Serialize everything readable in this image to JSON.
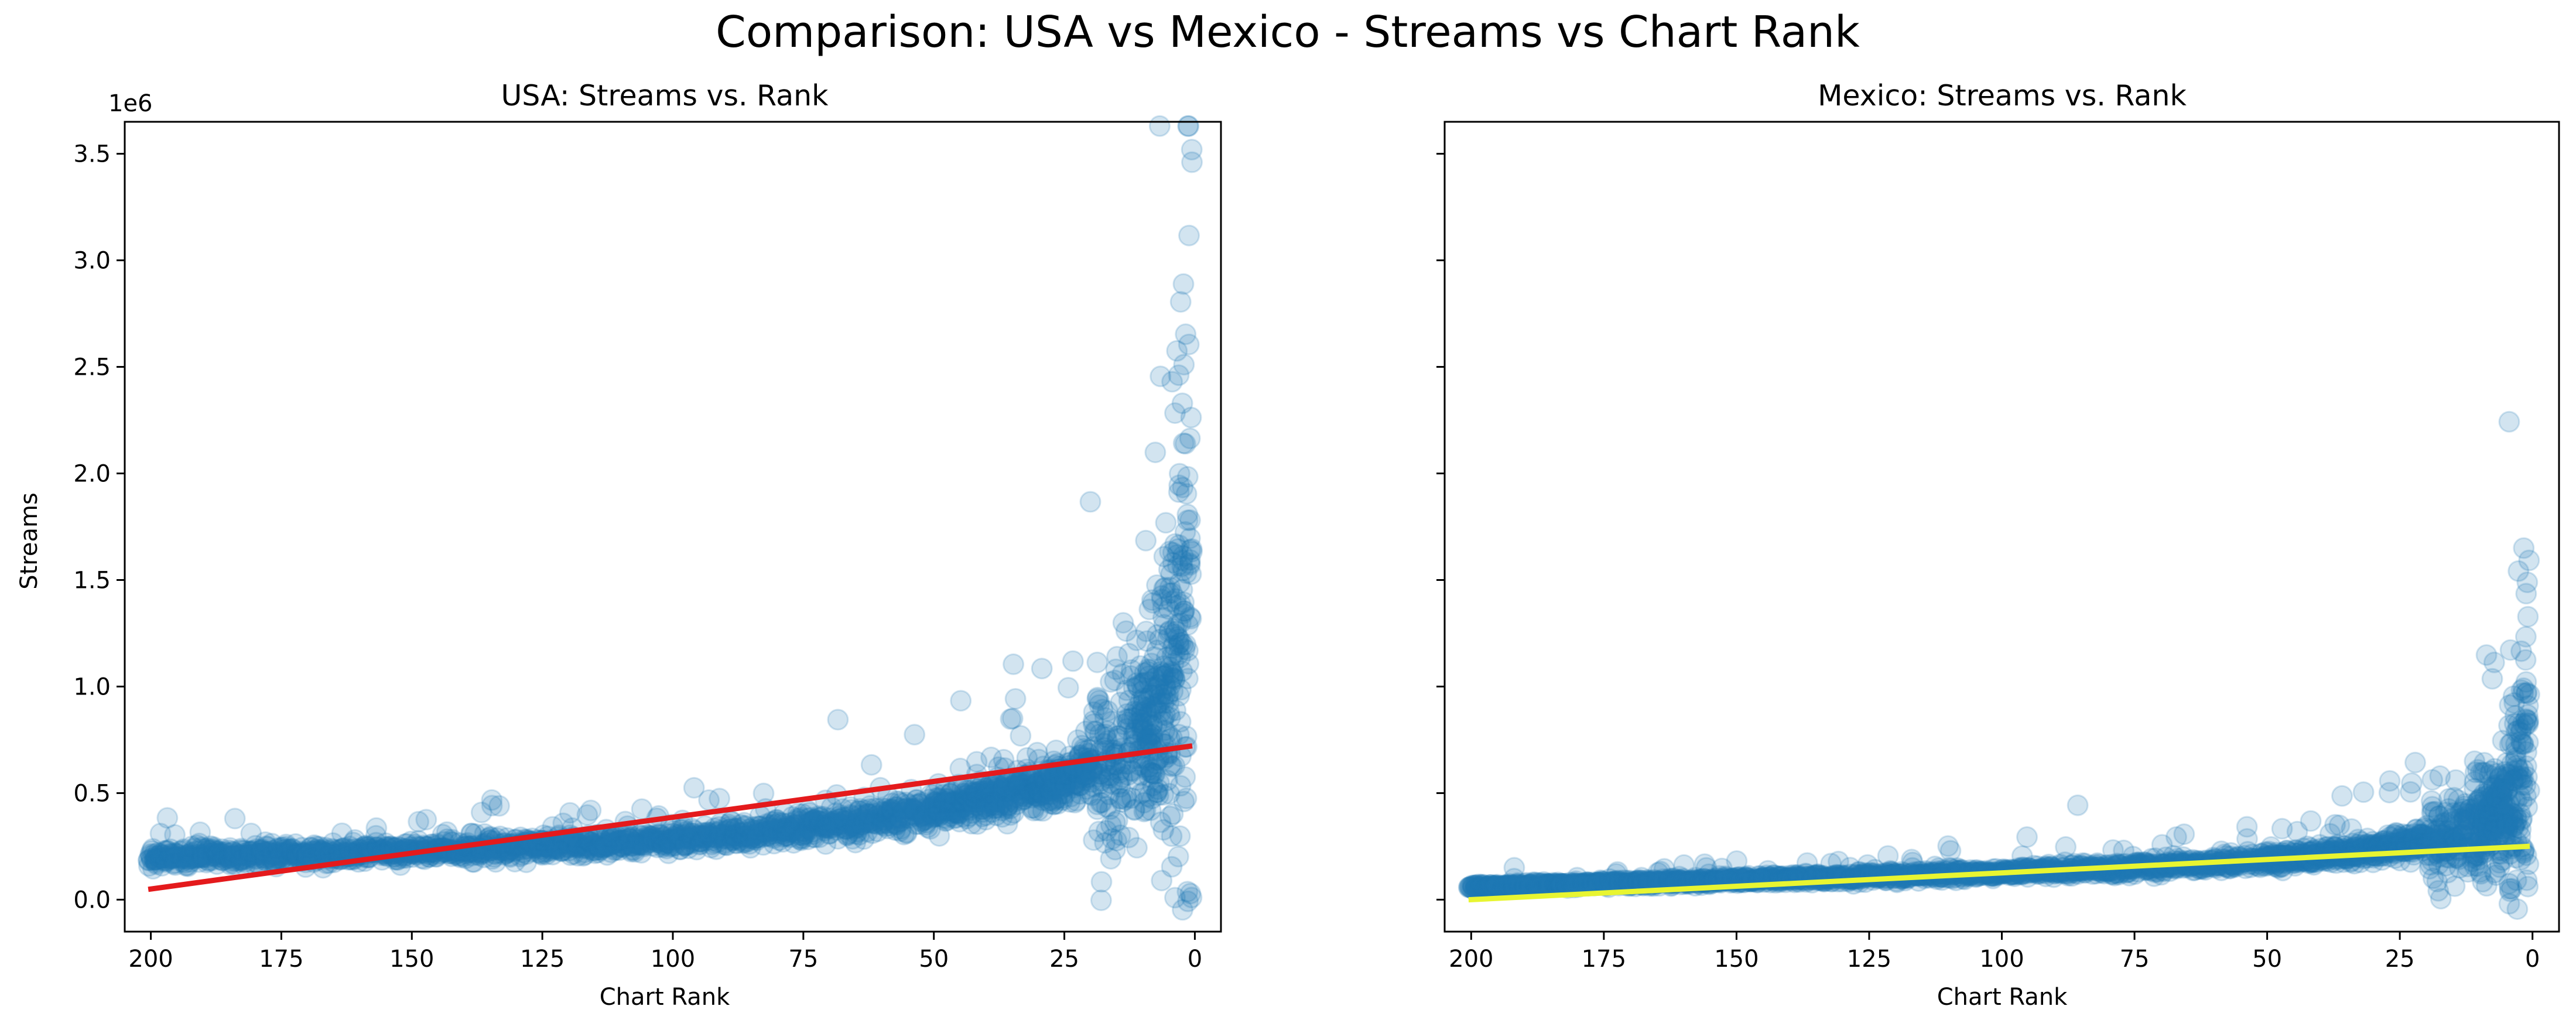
{
  "figure": {
    "suptitle": "Comparison: USA vs Mexico - Streams vs Chart Rank",
    "sci_offset": "1e6"
  },
  "chart_data": [
    {
      "type": "scatter",
      "title": "USA: Streams vs. Rank",
      "xlabel": "Chart Rank",
      "ylabel": "Streams",
      "x_inverted": true,
      "xlim": [
        205,
        -5
      ],
      "ylim": [
        -150000,
        3650000
      ],
      "xticks": [
        200,
        175,
        150,
        125,
        100,
        75,
        50,
        25,
        0
      ],
      "xtick_labels": [
        "200",
        "175",
        "150",
        "125",
        "100",
        "75",
        "50",
        "25",
        "0"
      ],
      "yticks": [
        0,
        500000,
        1000000,
        1500000,
        2000000,
        2500000,
        3000000,
        3500000
      ],
      "ytick_labels": [
        "0.0",
        "0.5",
        "1.0",
        "1.5",
        "2.0",
        "2.5",
        "3.0",
        "3.5"
      ],
      "y_scale_label": "1e6",
      "point_color": "#1f77b4",
      "trend_color": "#e41a1c",
      "grid": false,
      "series": [
        {
          "role": "points",
          "trend_shape": [
            [
              200,
              200000
            ],
            [
              180,
              210000
            ],
            [
              160,
              220000
            ],
            [
              140,
              235000
            ],
            [
              120,
              255000
            ],
            [
              100,
              280000
            ],
            [
              80,
              320000
            ],
            [
              60,
              380000
            ],
            [
              40,
              470000
            ],
            [
              25,
              560000
            ],
            [
              15,
              680000
            ],
            [
              8,
              850000
            ],
            [
              4,
              1050000
            ],
            [
              2,
              1300000
            ],
            [
              1,
              1500000
            ]
          ]
        },
        {
          "role": "regression",
          "x": [
            200,
            1
          ],
          "y": [
            50000,
            720000
          ]
        }
      ]
    },
    {
      "type": "scatter",
      "title": "Mexico: Streams vs. Rank",
      "xlabel": "Chart Rank",
      "x_inverted": true,
      "xlim": [
        205,
        -5
      ],
      "ylim": [
        -150000,
        3650000
      ],
      "xticks": [
        200,
        175,
        150,
        125,
        100,
        75,
        50,
        25,
        0
      ],
      "xtick_labels": [
        "200",
        "175",
        "150",
        "125",
        "100",
        "75",
        "50",
        "25",
        "0"
      ],
      "shared_y": true,
      "point_color": "#1f77b4",
      "trend_color": "#e8f531",
      "grid": false,
      "series": [
        {
          "role": "points",
          "trend_shape": [
            [
              200,
              60000
            ],
            [
              180,
              72000
            ],
            [
              160,
              85000
            ],
            [
              140,
              98000
            ],
            [
              120,
              112000
            ],
            [
              100,
              128000
            ],
            [
              80,
              145000
            ],
            [
              60,
              168000
            ],
            [
              40,
              205000
            ],
            [
              25,
              250000
            ],
            [
              15,
              300000
            ],
            [
              8,
              380000
            ],
            [
              4,
              460000
            ],
            [
              2,
              560000
            ],
            [
              1,
              700000
            ]
          ]
        },
        {
          "role": "regression",
          "x": [
            200,
            1
          ],
          "y": [
            0,
            250000
          ]
        }
      ]
    }
  ]
}
